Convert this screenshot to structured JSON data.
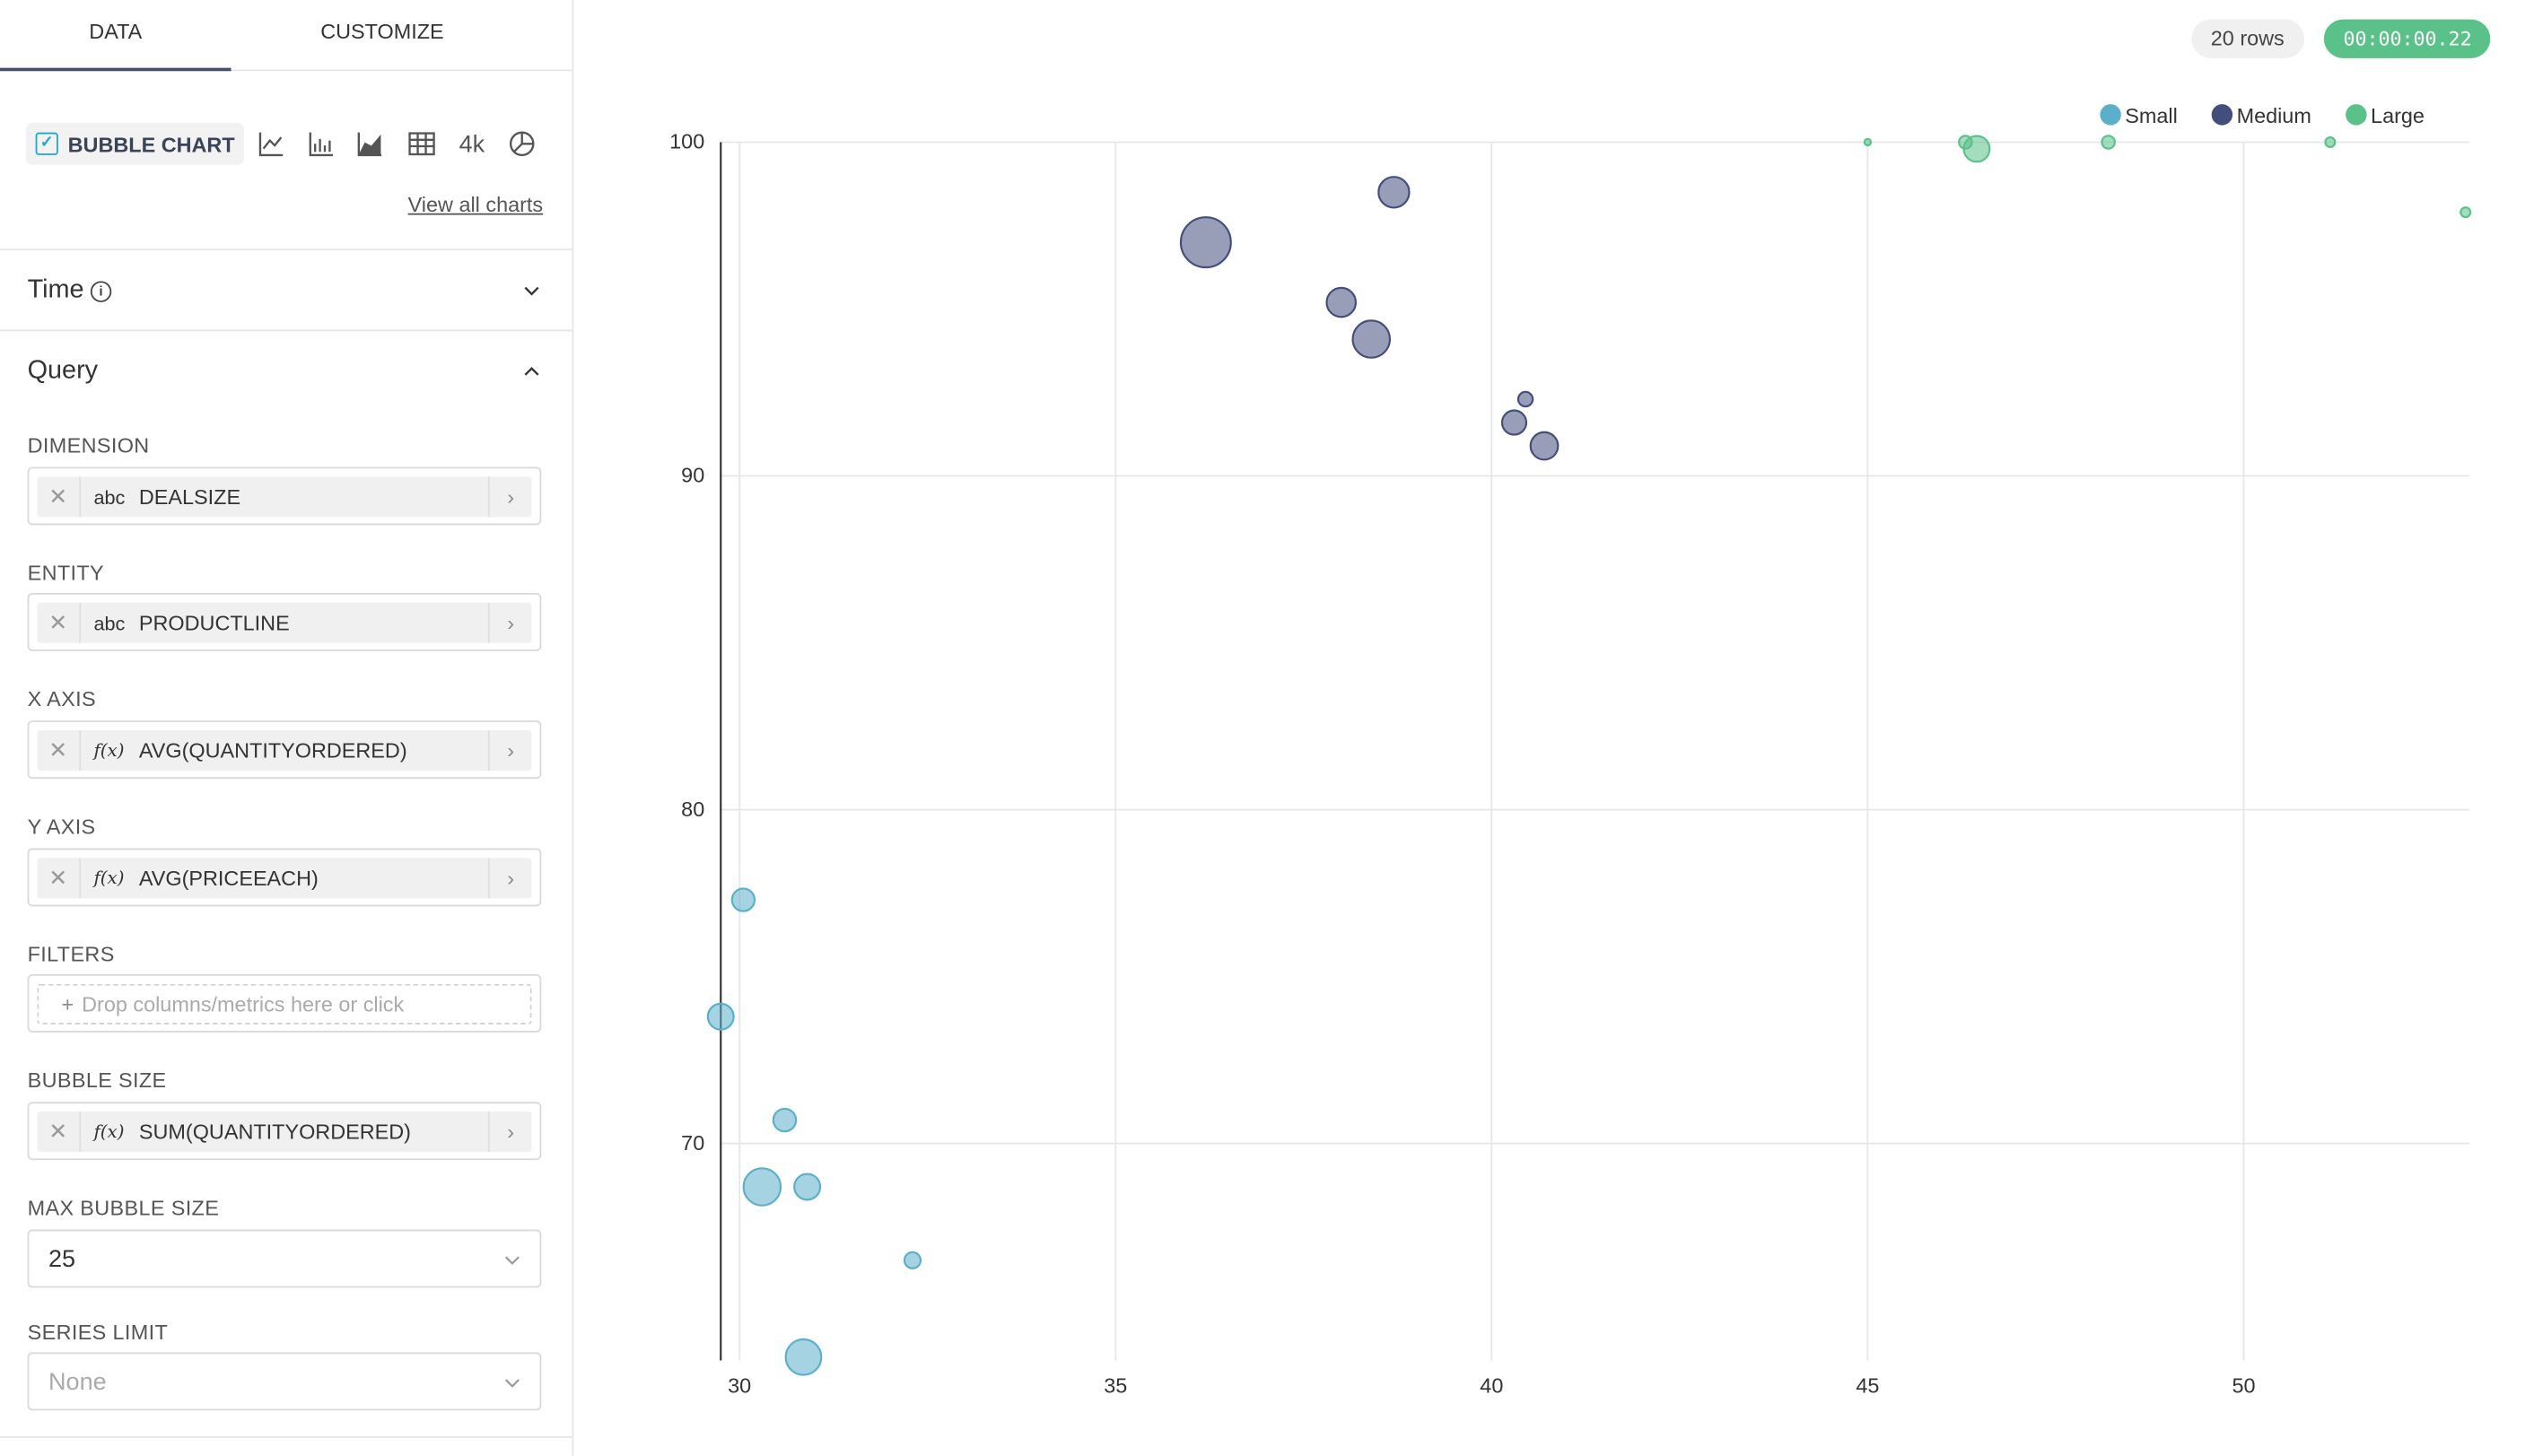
{
  "panel": {
    "tabs": [
      "DATA",
      "CUSTOMIZE"
    ],
    "viz_type_label": "BUBBLE CHART",
    "viz_icons": [
      "line-chart-icon",
      "bar-chart-icon",
      "area-chart-icon",
      "table-icon",
      "big-number-icon",
      "pie-chart-icon"
    ],
    "big_number_label": "4k",
    "view_all": "View all charts",
    "sections": {
      "time": "Time",
      "query": "Query"
    },
    "controls": {
      "dimension": {
        "label": "DIMENSION",
        "type": "abc",
        "value": "DEALSIZE"
      },
      "entity": {
        "label": "ENTITY",
        "type": "abc",
        "value": "PRODUCTLINE"
      },
      "x_axis": {
        "label": "X AXIS",
        "type": "f(x)",
        "value": "AVG(QUANTITYORDERED)"
      },
      "y_axis": {
        "label": "Y AXIS",
        "type": "f(x)",
        "value": "AVG(PRICEEACH)"
      },
      "filters": {
        "label": "FILTERS",
        "placeholder": "Drop columns/metrics here or click"
      },
      "bubble_size": {
        "label": "BUBBLE SIZE",
        "type": "f(x)",
        "value": "SUM(QUANTITYORDERED)"
      },
      "max_bubble_size": {
        "label": "MAX BUBBLE SIZE",
        "value": "25"
      },
      "series_limit": {
        "label": "SERIES LIMIT",
        "placeholder": "None"
      }
    }
  },
  "header": {
    "rows": "20 rows",
    "timer": "00:00:00.22"
  },
  "chart_data": {
    "type": "scatter",
    "title": "",
    "xlabel": "",
    "ylabel": "",
    "x_ticks": [
      "30",
      "35",
      "40",
      "45",
      "50"
    ],
    "y_ticks": [
      "70",
      "80",
      "90",
      "100"
    ],
    "xlim": [
      29.75,
      53
    ],
    "ylim": [
      63.5,
      100
    ],
    "grid": true,
    "legend_position": "top-right",
    "series": [
      {
        "name": "Small",
        "color": "#5bafca",
        "points": [
          {
            "x": 30.05,
            "y": 77.3,
            "r": 7
          },
          {
            "x": 29.75,
            "y": 73.8,
            "r": 8
          },
          {
            "x": 30.6,
            "y": 70.7,
            "r": 7
          },
          {
            "x": 30.3,
            "y": 68.7,
            "r": 11.5
          },
          {
            "x": 30.9,
            "y": 68.7,
            "r": 8
          },
          {
            "x": 32.3,
            "y": 66.5,
            "r": 5
          },
          {
            "x": 30.85,
            "y": 63.6,
            "r": 11
          }
        ]
      },
      {
        "name": "Medium",
        "color": "#444e7c",
        "points": [
          {
            "x": 38.7,
            "y": 98.5,
            "r": 9.5
          },
          {
            "x": 36.2,
            "y": 97.0,
            "r": 15.5
          },
          {
            "x": 38.0,
            "y": 95.2,
            "r": 9
          },
          {
            "x": 38.4,
            "y": 94.1,
            "r": 11.5
          },
          {
            "x": 40.45,
            "y": 92.3,
            "r": 4.5
          },
          {
            "x": 40.3,
            "y": 91.6,
            "r": 7.5
          },
          {
            "x": 40.7,
            "y": 90.9,
            "r": 8.5
          }
        ]
      },
      {
        "name": "Large",
        "color": "#5ac189",
        "points": [
          {
            "x": 45.0,
            "y": 100.0,
            "r": 2
          },
          {
            "x": 46.3,
            "y": 100.0,
            "r": 4
          },
          {
            "x": 46.45,
            "y": 99.8,
            "r": 8
          },
          {
            "x": 48.2,
            "y": 100.0,
            "r": 4
          },
          {
            "x": 51.15,
            "y": 100.0,
            "r": 3
          },
          {
            "x": 52.95,
            "y": 97.9,
            "r": 3
          }
        ]
      }
    ]
  }
}
